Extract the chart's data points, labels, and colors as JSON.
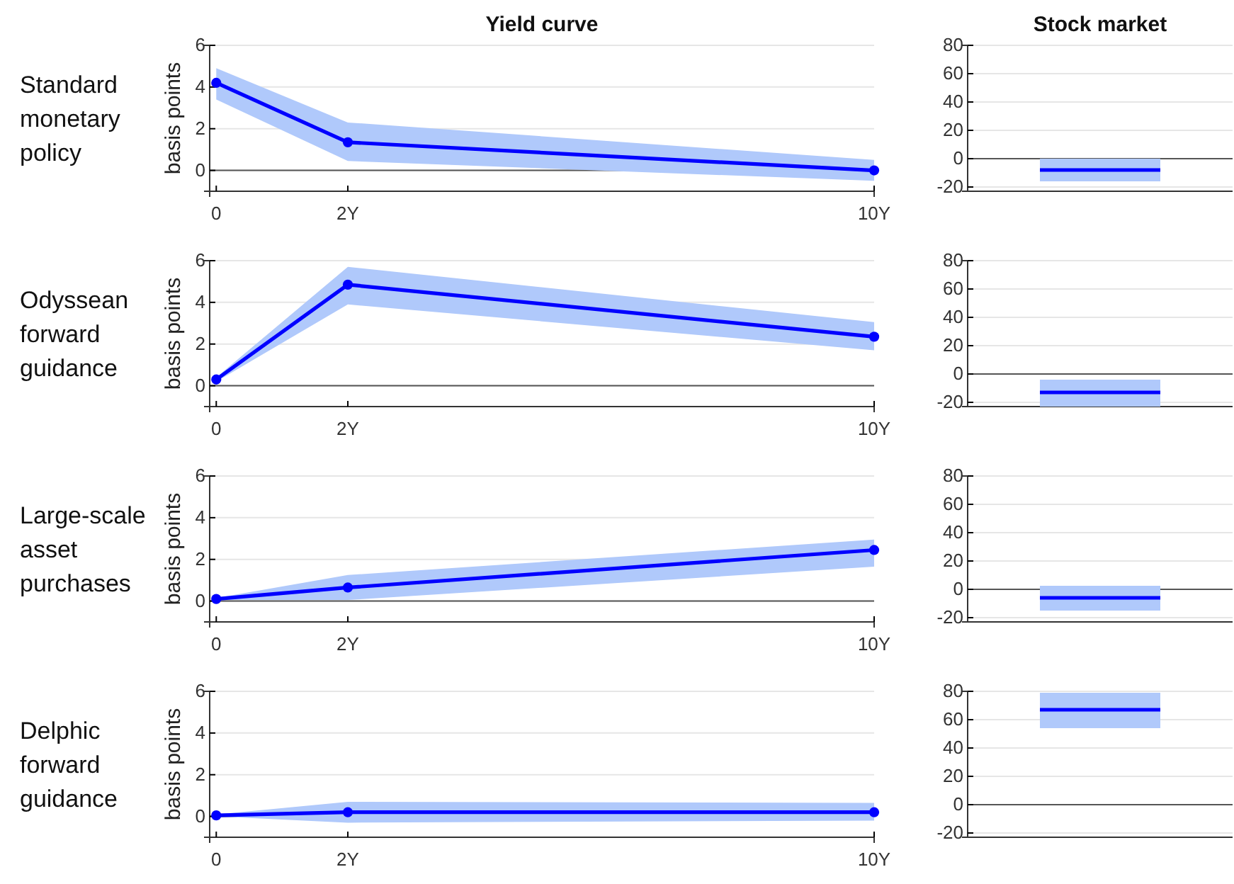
{
  "chart_data": [
    {
      "type": "line",
      "title": "Yield curve",
      "subtitle": "Standard monetary policy",
      "ylabel": "basis points",
      "x": [
        0,
        2,
        10
      ],
      "xlim": [
        -0.1,
        10
      ],
      "xticks": [
        {
          "value": 0,
          "label": "0"
        },
        {
          "value": 2,
          "label": "2Y"
        },
        {
          "value": 10,
          "label": "10Y"
        }
      ],
      "ylim": [
        -1,
        6
      ],
      "yticks": [
        0,
        2,
        4,
        6
      ],
      "grid": "y",
      "marker": "circle",
      "ref_lines": [
        {
          "axis": "y",
          "value": 0,
          "color": "#555555"
        }
      ],
      "series": [
        {
          "color": "#0000ff",
          "values": [
            4.2,
            1.35,
            0
          ],
          "lower": [
            3.4,
            0.45,
            -0.5
          ],
          "upper": [
            4.9,
            2.3,
            0.5
          ]
        }
      ]
    },
    {
      "type": "line",
      "title": "Stock market",
      "categories": [
        null,
        null
      ],
      "ylim": [
        -23,
        80
      ],
      "yticks": [
        -20,
        0,
        20,
        40,
        60,
        80
      ],
      "grid": "y",
      "tick_labels": "y",
      "marker": "none",
      "ref_lines": [
        {
          "axis": "y",
          "value": 0,
          "color": "#555555"
        }
      ],
      "series": [
        {
          "color": "#0000ff",
          "values": [
            -8,
            -8
          ],
          "lower": [
            -16,
            -16
          ],
          "upper": [
            0,
            0
          ]
        }
      ]
    },
    {
      "type": "line",
      "subtitle": "Odyssean forward guidance",
      "ylabel": "basis points",
      "x": [
        0,
        2,
        10
      ],
      "xlim": [
        -0.1,
        10
      ],
      "xticks": [
        {
          "value": 0,
          "label": "0"
        },
        {
          "value": 2,
          "label": "2Y"
        },
        {
          "value": 10,
          "label": "10Y"
        }
      ],
      "ylim": [
        -1,
        6
      ],
      "yticks": [
        0,
        2,
        4,
        6
      ],
      "grid": "y",
      "marker": "circle",
      "ref_lines": [
        {
          "axis": "y",
          "value": 0,
          "color": "#555555"
        }
      ],
      "series": [
        {
          "color": "#0000ff",
          "values": [
            0.3,
            4.85,
            2.35
          ],
          "lower": [
            0.2,
            3.9,
            1.7
          ],
          "upper": [
            0.4,
            5.7,
            3.05
          ]
        }
      ]
    },
    {
      "type": "line",
      "categories": [
        null,
        null
      ],
      "ylim": [
        -23,
        80
      ],
      "yticks": [
        -20,
        0,
        20,
        40,
        60,
        80
      ],
      "grid": "y",
      "tick_labels": "y",
      "marker": "none",
      "ref_lines": [
        {
          "axis": "y",
          "value": 0,
          "color": "#555555"
        }
      ],
      "series": [
        {
          "color": "#0000ff",
          "values": [
            -13,
            -13
          ],
          "lower": [
            -23,
            -23
          ],
          "upper": [
            -4,
            -4
          ]
        }
      ]
    },
    {
      "type": "line",
      "subtitle": "Large-scale asset purchases",
      "ylabel": "basis points",
      "x": [
        0,
        2,
        10
      ],
      "xlim": [
        -0.1,
        10
      ],
      "xticks": [
        {
          "value": 0,
          "label": "0"
        },
        {
          "value": 2,
          "label": "2Y"
        },
        {
          "value": 10,
          "label": "10Y"
        }
      ],
      "ylim": [
        -1,
        6
      ],
      "yticks": [
        0,
        2,
        4,
        6
      ],
      "grid": "y",
      "marker": "circle",
      "ref_lines": [
        {
          "axis": "y",
          "value": 0,
          "color": "#555555"
        }
      ],
      "series": [
        {
          "color": "#0000ff",
          "values": [
            0.1,
            0.65,
            2.45
          ],
          "lower": [
            0.05,
            0.05,
            1.65
          ],
          "upper": [
            0.15,
            1.25,
            2.95
          ]
        }
      ]
    },
    {
      "type": "line",
      "categories": [
        null,
        null
      ],
      "ylim": [
        -23,
        80
      ],
      "yticks": [
        -20,
        0,
        20,
        40,
        60,
        80
      ],
      "grid": "y",
      "tick_labels": "y",
      "marker": "none",
      "ref_lines": [
        {
          "axis": "y",
          "value": 0,
          "color": "#555555"
        }
      ],
      "series": [
        {
          "color": "#0000ff",
          "values": [
            -6,
            -6
          ],
          "lower": [
            -15,
            -15
          ],
          "upper": [
            2.5,
            2.5
          ]
        }
      ]
    },
    {
      "type": "line",
      "subtitle": "Delphic forward guidance",
      "ylabel": "basis points",
      "x": [
        0,
        2,
        10
      ],
      "xlim": [
        -0.1,
        10
      ],
      "xticks": [
        {
          "value": 0,
          "label": "0"
        },
        {
          "value": 2,
          "label": "2Y"
        },
        {
          "value": 10,
          "label": "10Y"
        }
      ],
      "ylim": [
        -1,
        6
      ],
      "yticks": [
        0,
        2,
        4,
        6
      ],
      "grid": "y",
      "marker": "circle",
      "ref_lines": [
        {
          "axis": "y",
          "value": 0,
          "color": "#555555"
        }
      ],
      "series": [
        {
          "color": "#0000ff",
          "values": [
            0.05,
            0.2,
            0.2
          ],
          "lower": [
            0,
            -0.3,
            -0.2
          ],
          "upper": [
            0.1,
            0.7,
            0.65
          ]
        }
      ]
    },
    {
      "type": "line",
      "categories": [
        null,
        null
      ],
      "ylim": [
        -23,
        80
      ],
      "yticks": [
        -20,
        0,
        20,
        40,
        60,
        80
      ],
      "grid": "y",
      "tick_labels": "y",
      "marker": "none",
      "ref_lines": [
        {
          "axis": "y",
          "value": 0,
          "color": "#555555"
        }
      ],
      "series": [
        {
          "color": "#0000ff",
          "values": [
            67,
            67
          ],
          "lower": [
            54,
            54
          ],
          "upper": [
            79,
            79
          ]
        }
      ]
    }
  ]
}
